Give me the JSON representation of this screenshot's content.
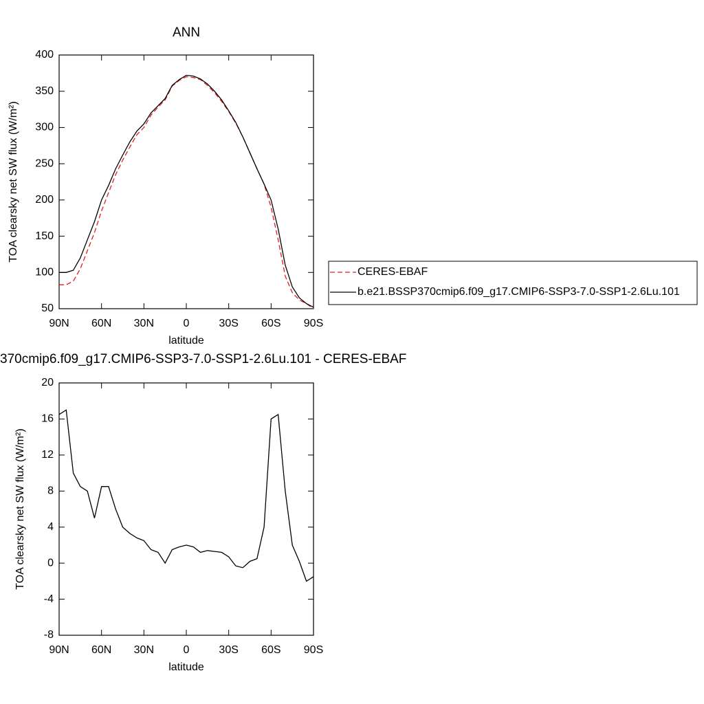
{
  "chart_data": [
    {
      "type": "line",
      "title": "ANN",
      "xlabel": "latitude",
      "ylabel": "TOA clearsky net SW flux (W/m²)",
      "x": [
        90,
        85,
        80,
        75,
        70,
        65,
        60,
        55,
        50,
        45,
        40,
        35,
        30,
        25,
        20,
        15,
        10,
        5,
        0,
        -5,
        -10,
        -15,
        -20,
        -25,
        -30,
        -35,
        -40,
        -45,
        -50,
        -55,
        -60,
        -65,
        -70,
        -75,
        -80,
        -85,
        -90
      ],
      "series": [
        {
          "name": "CERES-EBAF",
          "color": "#e31a1c",
          "dashed": true,
          "values": [
            83,
            83,
            88,
            105,
            130,
            155,
            185,
            210,
            235,
            255,
            273,
            290,
            300,
            317,
            328,
            338,
            357,
            365,
            370,
            369,
            366,
            358,
            348,
            336,
            322,
            306,
            287,
            265,
            243,
            222,
            190,
            145,
            95,
            72,
            62,
            57,
            50
          ]
        },
        {
          "name": "b.e21.BSSP370cmip6.f09_g17.CMIP6-SSP3-7.0-SSP1-2.6Lu.101",
          "color": "#000000",
          "dashed": false,
          "values": [
            100,
            100,
            103,
            120,
            145,
            170,
            200,
            220,
            243,
            262,
            280,
            295,
            305,
            320,
            330,
            340,
            358,
            366,
            372,
            371,
            367,
            360,
            350,
            338,
            323,
            307,
            287,
            265,
            243,
            222,
            200,
            160,
            110,
            80,
            65,
            57,
            52
          ]
        }
      ],
      "xlim": [
        90,
        -90
      ],
      "xticks": [
        {
          "value": 90,
          "label": "90N"
        },
        {
          "value": 60,
          "label": "60N"
        },
        {
          "value": 30,
          "label": "30N"
        },
        0,
        {
          "value": -30,
          "label": "30S"
        },
        {
          "value": -60,
          "label": "60S"
        },
        {
          "value": -90,
          "label": "90S"
        }
      ],
      "ylim": [
        50,
        400
      ],
      "yticks": [
        50,
        100,
        150,
        200,
        250,
        300,
        350,
        400
      ],
      "legend": "right"
    },
    {
      "type": "line",
      "title": "370cmip6.f09_g17.CMIP6-SSP3-7.0-SSP1-2.6Lu.101 - CERES-EBAF",
      "xlabel": "latitude",
      "ylabel": "TOA clearsky net SW flux (W/m²)",
      "x": [
        90,
        85,
        80,
        75,
        70,
        65,
        60,
        55,
        50,
        45,
        40,
        35,
        30,
        25,
        20,
        15,
        10,
        5,
        0,
        -5,
        -10,
        -15,
        -20,
        -25,
        -30,
        -35,
        -40,
        -45,
        -50,
        -55,
        -60,
        -65,
        -70,
        -75,
        -80,
        -85,
        -90
      ],
      "values": [
        16.5,
        17,
        10,
        8.5,
        8,
        5,
        8.5,
        8.5,
        6,
        4,
        3.3,
        2.8,
        2.5,
        1.5,
        1.2,
        0,
        1.5,
        1.8,
        2,
        1.8,
        1.2,
        1.4,
        1.3,
        1.2,
        0.7,
        -0.3,
        -0.5,
        0.2,
        0.5,
        4,
        16,
        16.5,
        8,
        2,
        0.2,
        -2,
        -1.5
      ],
      "color": "#000000",
      "xlim": [
        90,
        -90
      ],
      "xticks": [
        {
          "value": 90,
          "label": "90N"
        },
        {
          "value": 60,
          "label": "60N"
        },
        {
          "value": 30,
          "label": "30N"
        },
        0,
        {
          "value": -30,
          "label": "30S"
        },
        {
          "value": -60,
          "label": "60S"
        },
        {
          "value": -90,
          "label": "90S"
        }
      ],
      "ylim": [
        -8,
        20
      ],
      "yticks": [
        -8,
        -4,
        0,
        4,
        8,
        12,
        16,
        20
      ]
    }
  ]
}
